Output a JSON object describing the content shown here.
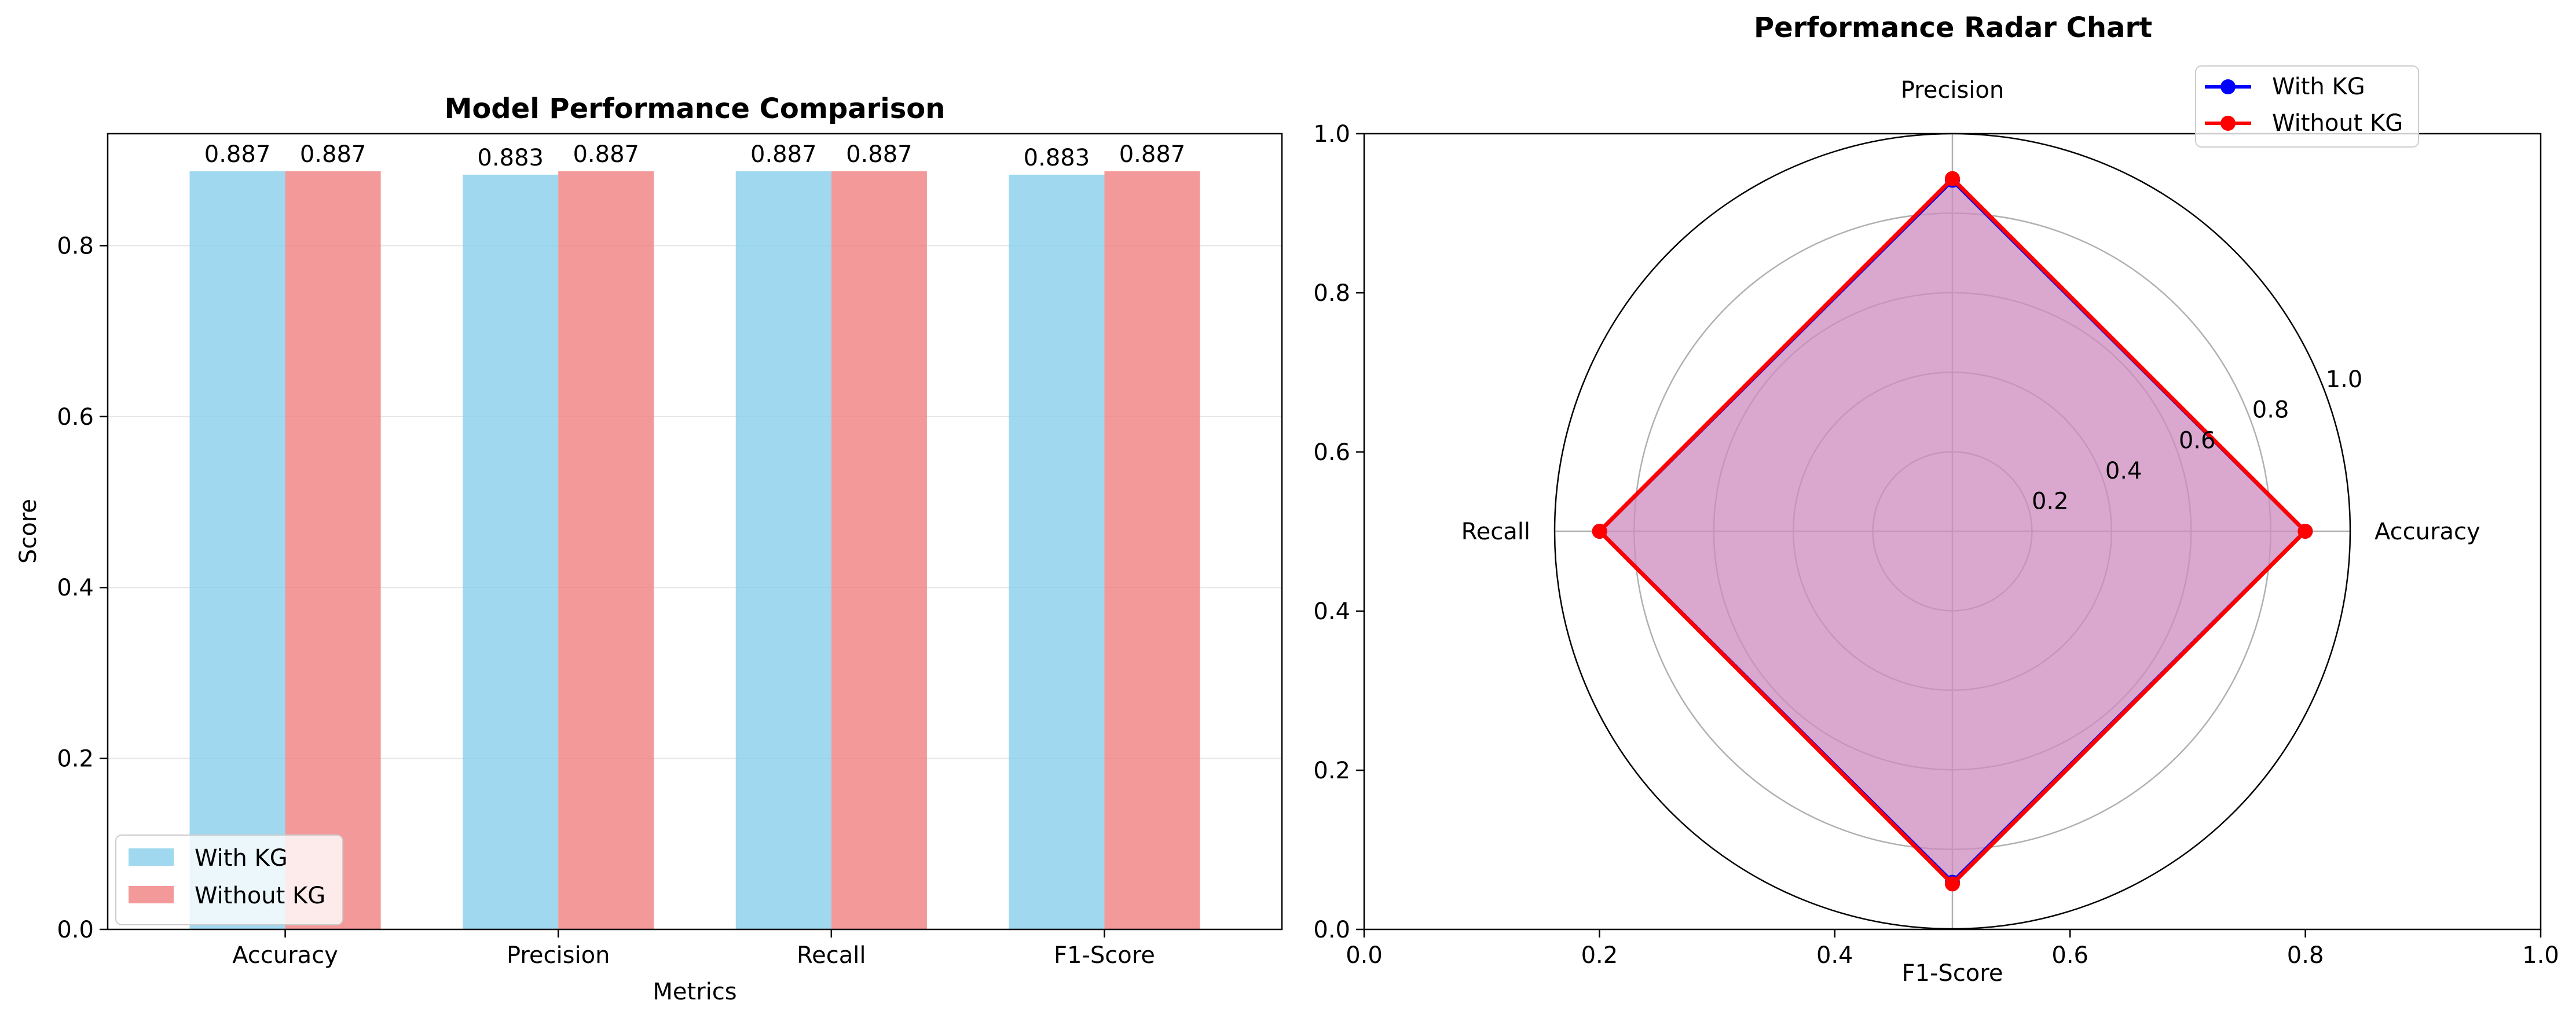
{
  "chart_data": [
    {
      "type": "bar",
      "title": "Model Performance Comparison",
      "xlabel": "Metrics",
      "ylabel": "Score",
      "categories": [
        "Accuracy",
        "Precision",
        "Recall",
        "F1-Score"
      ],
      "series": [
        {
          "name": "With KG",
          "values": [
            0.887,
            0.883,
            0.887,
            0.883
          ],
          "value_labels": [
            "0.887",
            "0.883",
            "0.887",
            "0.883"
          ],
          "color": "#87ceeb"
        },
        {
          "name": "Without KG",
          "values": [
            0.887,
            0.887,
            0.887,
            0.887
          ],
          "value_labels": [
            "0.887",
            "0.887",
            "0.887",
            "0.887"
          ],
          "color": "#f08080"
        }
      ],
      "ylim": [
        0,
        0.931
      ],
      "yticks": [
        "0.0",
        "0.2",
        "0.4",
        "0.6",
        "0.8"
      ],
      "grid": "y",
      "legend": "lower-left"
    },
    {
      "type": "radar",
      "title": "Performance Radar Chart",
      "axes": [
        "Accuracy",
        "Precision",
        "Recall",
        "F1-Score"
      ],
      "rlim": [
        0,
        1.0
      ],
      "rticks": [
        "0.2",
        "0.4",
        "0.6",
        "0.8",
        "1.0"
      ],
      "series": [
        {
          "name": "With KG",
          "values": [
            0.887,
            0.883,
            0.887,
            0.883
          ],
          "color": "#0000ff"
        },
        {
          "name": "Without KG",
          "values": [
            0.887,
            0.887,
            0.887,
            0.887
          ],
          "color": "#ff0000"
        }
      ],
      "fill_color": "#cd8bc0",
      "background_axes": {
        "xticks": [
          "0.0",
          "0.2",
          "0.4",
          "0.6",
          "0.8",
          "1.0"
        ],
        "yticks": [
          "0.0",
          "0.2",
          "0.4",
          "0.6",
          "0.8",
          "1.0"
        ]
      },
      "legend": "top-right"
    }
  ]
}
